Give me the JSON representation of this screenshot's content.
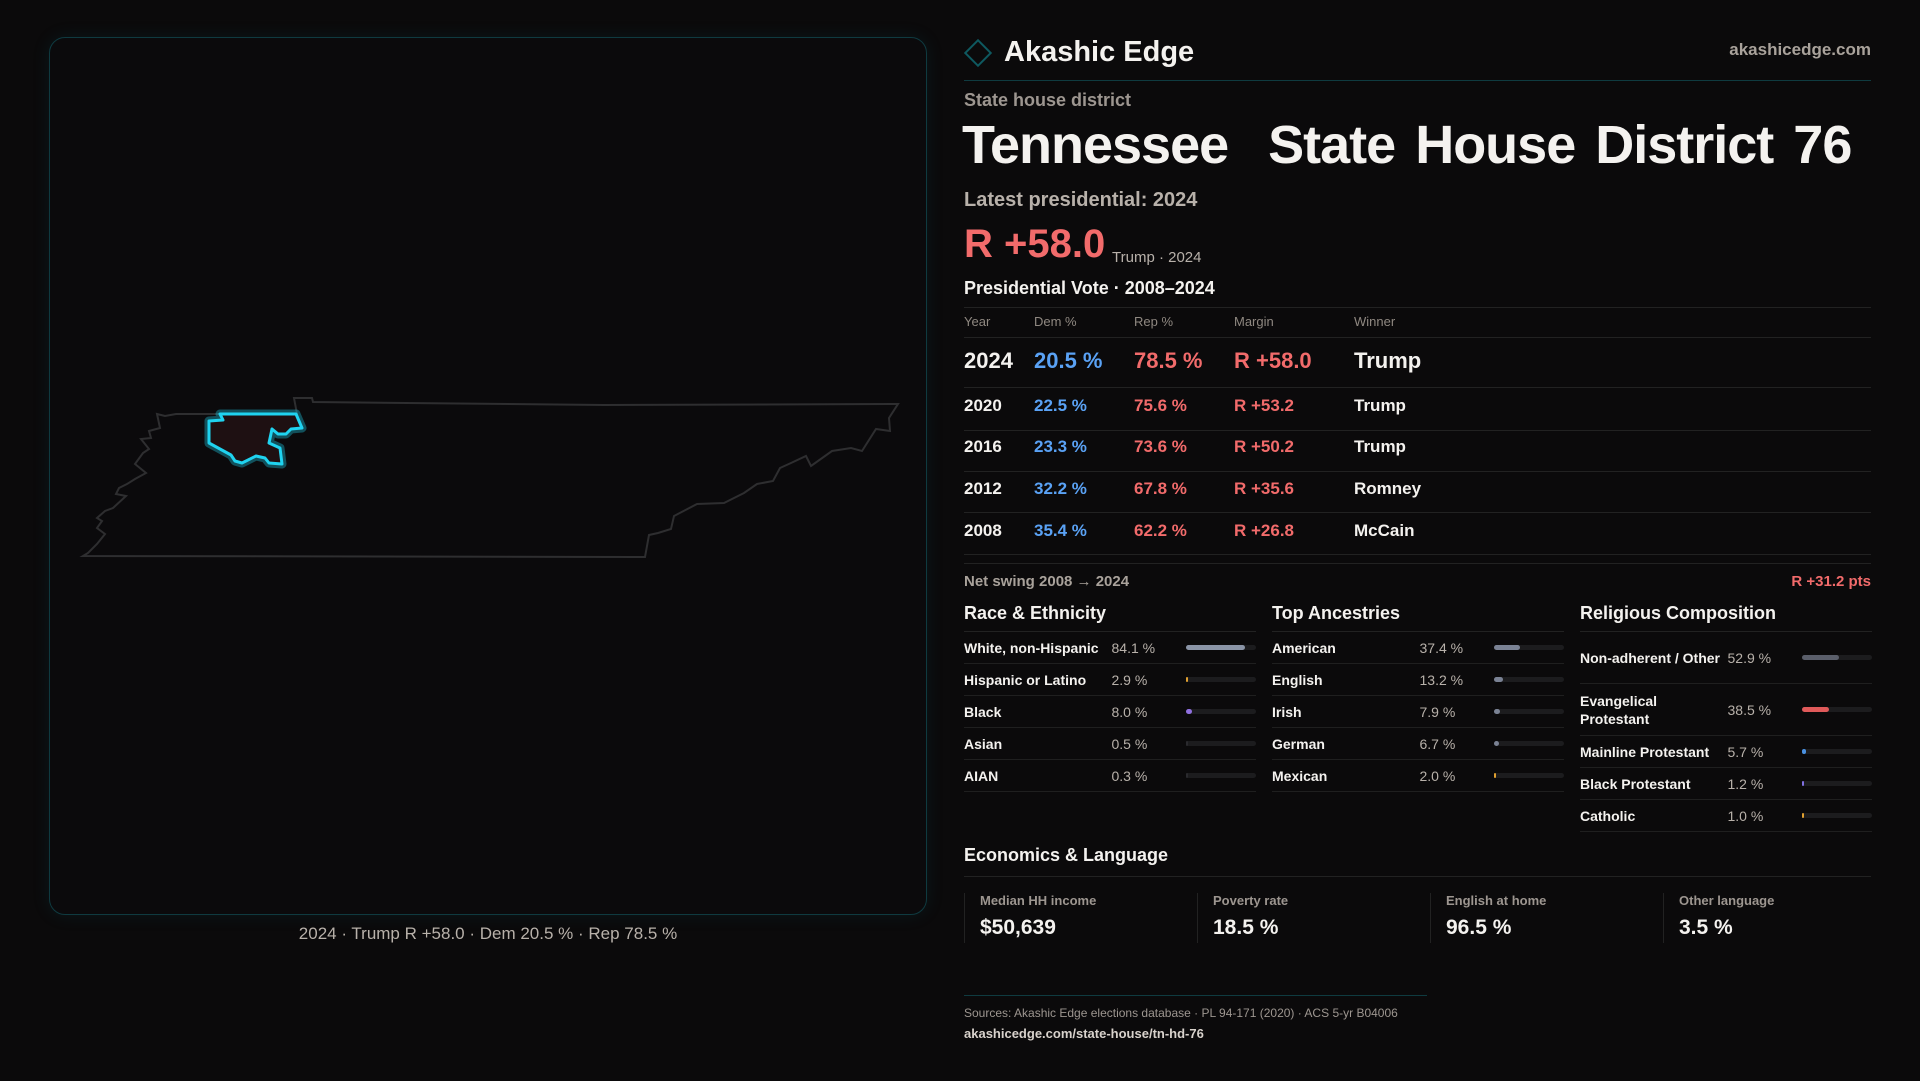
{
  "brand": {
    "name": "Akashic Edge",
    "site": "akashicedge.com"
  },
  "header": {
    "kind": "State house district",
    "title": "Tennessee  State House District 76",
    "latest": "Latest presidential: 2024",
    "margin": "R +58.0",
    "margin_sub": "Trump · 2024"
  },
  "map": {
    "caption": "2024 · Trump R +58.0 · Dem 20.5 % · Rep 78.5 %",
    "highlight_color": "#1fd3f0"
  },
  "votes": {
    "title": "Presidential Vote · 2008–2024",
    "headers": [
      "Year",
      "Dem %",
      "Rep %",
      "Margin",
      "Winner"
    ],
    "rows": [
      {
        "year": "2024",
        "dem": "20.5 %",
        "rep": "78.5 %",
        "margin": "R +58.0",
        "winner": "Trump"
      },
      {
        "year": "2020",
        "dem": "22.5 %",
        "rep": "75.6 %",
        "margin": "R +53.2",
        "winner": "Trump"
      },
      {
        "year": "2016",
        "dem": "23.3 %",
        "rep": "73.6 %",
        "margin": "R +50.2",
        "winner": "Trump"
      },
      {
        "year": "2012",
        "dem": "32.2 %",
        "rep": "67.8 %",
        "margin": "R +35.6",
        "winner": "Romney"
      },
      {
        "year": "2008",
        "dem": "35.4 %",
        "rep": "62.2 %",
        "margin": "R +26.8",
        "winner": "McCain"
      }
    ],
    "swing_label": "Net swing 2008 → 2024",
    "swing_value": "R +31.2 pts"
  },
  "demographics": [
    {
      "title": "Race & Ethnicity",
      "items": [
        {
          "label": "White, non-Hispanic",
          "value": "84.1 %",
          "pct": 84.1,
          "color": "#8a94a6"
        },
        {
          "label": "Hispanic or Latino",
          "value": "2.9 %",
          "pct": 2.9,
          "color": "#e0a030"
        },
        {
          "label": "Black",
          "value": "8.0 %",
          "pct": 8.0,
          "color": "#9070e0"
        },
        {
          "label": "Asian",
          "value": "0.5 %",
          "pct": 0.5,
          "color": "#2a2a2e"
        },
        {
          "label": "AIAN",
          "value": "0.3 %",
          "pct": 0.3,
          "color": "#2a2a2e"
        }
      ]
    },
    {
      "title": "Top Ancestries",
      "items": [
        {
          "label": "American",
          "value": "37.4 %",
          "pct": 37.4,
          "color": "#7a8294"
        },
        {
          "label": "English",
          "value": "13.2 %",
          "pct": 13.2,
          "color": "#7a8294"
        },
        {
          "label": "Irish",
          "value": "7.9 %",
          "pct": 7.9,
          "color": "#7a8294"
        },
        {
          "label": "German",
          "value": "6.7 %",
          "pct": 6.7,
          "color": "#7a8294"
        },
        {
          "label": "Mexican",
          "value": "2.0 %",
          "pct": 2.0,
          "color": "#e0a030"
        }
      ]
    },
    {
      "title": "Religious Composition",
      "items": [
        {
          "label": "Non-adherent / Other",
          "value": "52.9 %",
          "pct": 52.9,
          "color": "#5a5e6a"
        },
        {
          "label": "Evangelical Protestant",
          "value": "38.5 %",
          "pct": 38.5,
          "color": "#e05a5a"
        },
        {
          "label": "Mainline Protestant",
          "value": "5.7 %",
          "pct": 5.7,
          "color": "#4a90e0"
        },
        {
          "label": "Black Protestant",
          "value": "1.2 %",
          "pct": 1.2,
          "color": "#8070e0"
        },
        {
          "label": "Catholic",
          "value": "1.0 %",
          "pct": 1.0,
          "color": "#e0a030"
        }
      ]
    }
  ],
  "economics": {
    "title": "Economics & Language",
    "cards": [
      {
        "label": "Median HH income",
        "value": "$50,639"
      },
      {
        "label": "Poverty rate",
        "value": "18.5 %"
      },
      {
        "label": "English at home",
        "value": "96.5 %"
      },
      {
        "label": "Other language",
        "value": "3.5 %"
      }
    ]
  },
  "footer": {
    "sources": "Sources: Akashic Edge elections database · PL 94-171 (2020) · ACS 5-yr B04006",
    "url": "akashicedge.com/state-house/tn-hd-76"
  }
}
